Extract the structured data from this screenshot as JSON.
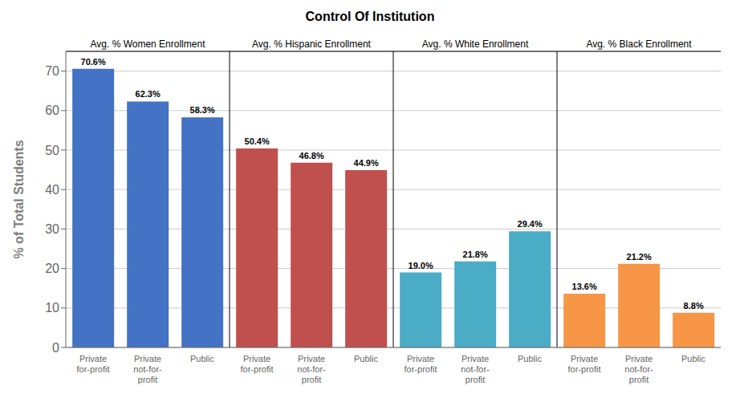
{
  "chart_data": {
    "type": "bar",
    "title": "Control Of Institution",
    "y_label": "% of Total Students",
    "categories": [
      "Private\nfor-profit",
      "Private\nnot-for-\nprofit",
      "Public"
    ],
    "series": [
      {
        "name": "Avg. % Women Enrollment",
        "color": "#4472C4",
        "values": [
          70.6,
          62.3,
          58.3
        ],
        "value_labels": [
          "70.6%",
          "62.3%",
          "58.3%"
        ]
      },
      {
        "name": "Avg. % Hispanic Enrollment",
        "color": "#C0504D",
        "values": [
          50.4,
          46.8,
          44.9
        ],
        "value_labels": [
          "50.4%",
          "46.8%",
          "44.9%"
        ]
      },
      {
        "name": "Avg. % White Enrollment",
        "color": "#4BACC6",
        "values": [
          19.0,
          21.8,
          29.4
        ],
        "value_labels": [
          "19.0%",
          "21.8%",
          "29.4%"
        ]
      },
      {
        "name": "Avg. % Black Enrollment",
        "color": "#F79646",
        "values": [
          13.6,
          21.2,
          8.8
        ],
        "value_labels": [
          "13.6%",
          "21.2%",
          "8.8%"
        ]
      }
    ],
    "ylim": [
      0,
      75
    ],
    "yticks": [
      0,
      10,
      20,
      30,
      40,
      50,
      60,
      70
    ],
    "grid": true,
    "data_labels": true
  }
}
